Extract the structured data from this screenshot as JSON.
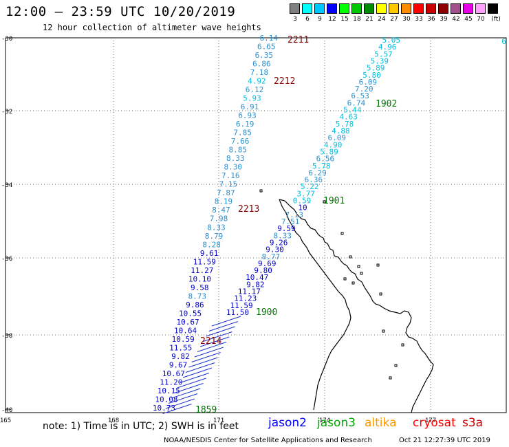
{
  "header": {
    "title": "12:00 – 23:59 UTC 10/20/2019",
    "subtitle": "12 hour collection of altimeter wave heights"
  },
  "color_scale": {
    "unit": "(ft)",
    "swatches": [
      {
        "label": "3",
        "color": "#808080"
      },
      {
        "label": "6",
        "color": "#00ffff"
      },
      {
        "label": "9",
        "color": "#00c8ff"
      },
      {
        "label": "12",
        "color": "#0000ff"
      },
      {
        "label": "15",
        "color": "#00ff00"
      },
      {
        "label": "18",
        "color": "#00c800"
      },
      {
        "label": "21",
        "color": "#008c00"
      },
      {
        "label": "24",
        "color": "#ffff00"
      },
      {
        "label": "27",
        "color": "#ffc800"
      },
      {
        "label": "30",
        "color": "#ff8c00"
      },
      {
        "label": "33",
        "color": "#ff0000"
      },
      {
        "label": "36",
        "color": "#c80000"
      },
      {
        "label": "39",
        "color": "#8c0000"
      },
      {
        "label": "42",
        "color": "#a0508c"
      },
      {
        "label": "45",
        "color": "#e600e6"
      },
      {
        "label": "70",
        "color": "#ffa0ff"
      },
      {
        "label": "",
        "color": "#000000"
      }
    ]
  },
  "map": {
    "lat_labels": [
      "-30",
      "-32",
      "-34",
      "-36",
      "-38",
      "-40"
    ],
    "lon_labels": [
      "165",
      "168",
      "171",
      "174",
      "177"
    ],
    "tracks": [
      {
        "name": "west-track",
        "values": [
          "6.14",
          "6.65",
          "6.35",
          "6.86",
          "7.18",
          "4.92",
          "6.12",
          "5.93",
          "6.91",
          "6.93",
          "6.19",
          "7.85",
          "7.66",
          "8.85",
          "8.33",
          "8.30",
          "7.16",
          "7.15",
          "7.87",
          "8.19",
          "8.47",
          "7.98",
          "8.33",
          "8.79",
          "8.28",
          "9.61",
          "11.59",
          "11.27",
          "10.10",
          "9.58",
          "8.73",
          "9.86",
          "10.55",
          "10.67",
          "10.64",
          "10.59",
          "11.55",
          "9.82",
          "9.67",
          "10.67",
          "11.20",
          "10.15",
          "10.08",
          "10.73"
        ]
      },
      {
        "name": "east-track",
        "values": [
          "5.05",
          "4.96",
          "5.57",
          "5.39",
          "5.89",
          "5.80",
          "6.09",
          "7.20",
          "6.53",
          "6.74",
          "5.44",
          "4.63",
          "5.78",
          "4.88",
          "6.09",
          "4.90",
          "5.89",
          "6.56",
          "5.78",
          "6.29",
          "6.36",
          "5.22",
          "3.77",
          "0.59",
          "10",
          "7.13",
          "7.51",
          "9.59",
          "8.33",
          "9.26",
          "9.30",
          "8.77",
          "9.69",
          "9.80",
          "10.47",
          "9.82",
          "11.17",
          "11.23",
          "11.59",
          "11.50"
        ]
      }
    ],
    "pass_times": [
      {
        "label": "2211",
        "color": "#8b0000"
      },
      {
        "label": "2212",
        "color": "#8b0000"
      },
      {
        "label": "2213",
        "color": "#8b0000"
      },
      {
        "label": "2214",
        "color": "#8b0000"
      },
      {
        "label": "1902",
        "color": "#007700"
      },
      {
        "label": "1901",
        "color": "#007700"
      },
      {
        "label": "1900",
        "color": "#007700"
      },
      {
        "label": "1859",
        "color": "#007700"
      }
    ],
    "edge_label": "6"
  },
  "footer": {
    "note": "note: 1) Time is in UTC; 2) SWH is in feet",
    "satellites": [
      {
        "label": "jason2",
        "color": "#0000ff"
      },
      {
        "label": "jason3",
        "color": "#00aa00"
      },
      {
        "label": "altika",
        "color": "#ff9900"
      },
      {
        "label": "cryosat",
        "color": "#ff0000"
      },
      {
        "label": "s3a",
        "color": "#cc0000"
      }
    ],
    "credit": "NOAA/NESDIS Center for Satellite Applications and Research",
    "timestamp": "Oct 21 12:27:39 UTC 2019"
  }
}
